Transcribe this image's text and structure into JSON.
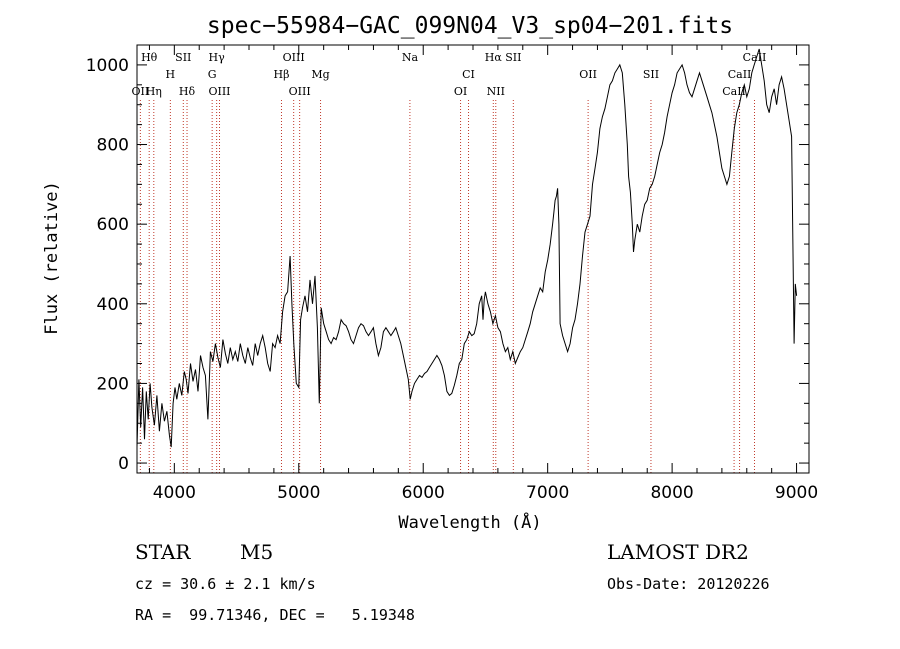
{
  "chart_data": {
    "type": "line",
    "title": "spec−55984−GAC_099N04_V3_sp04−201.fits",
    "xlabel": "Wavelength (Å)",
    "ylabel": "Flux (relative)",
    "xlim": [
      3700,
      9100
    ],
    "ylim": [
      -25,
      1050
    ],
    "x_ticks": [
      4000,
      5000,
      6000,
      7000,
      8000,
      9000
    ],
    "y_ticks": [
      0,
      200,
      400,
      600,
      800,
      1000
    ],
    "grid": false,
    "series": [
      {
        "points": [
          [
            3700,
            40
          ],
          [
            3715,
            210
          ],
          [
            3730,
            90
          ],
          [
            3745,
            190
          ],
          [
            3760,
            60
          ],
          [
            3775,
            180
          ],
          [
            3790,
            110
          ],
          [
            3805,
            200
          ],
          [
            3820,
            140
          ],
          [
            3840,
            95
          ],
          [
            3860,
            170
          ],
          [
            3880,
            80
          ],
          [
            3900,
            150
          ],
          [
            3920,
            105
          ],
          [
            3940,
            130
          ],
          [
            3960,
            70
          ],
          [
            3975,
            40
          ],
          [
            3990,
            150
          ],
          [
            4005,
            190
          ],
          [
            4020,
            160
          ],
          [
            4040,
            200
          ],
          [
            4060,
            170
          ],
          [
            4080,
            230
          ],
          [
            4095,
            210
          ],
          [
            4110,
            175
          ],
          [
            4130,
            250
          ],
          [
            4150,
            205
          ],
          [
            4170,
            235
          ],
          [
            4190,
            180
          ],
          [
            4210,
            270
          ],
          [
            4230,
            240
          ],
          [
            4250,
            220
          ],
          [
            4270,
            110
          ],
          [
            4290,
            280
          ],
          [
            4310,
            255
          ],
          [
            4330,
            300
          ],
          [
            4350,
            265
          ],
          [
            4370,
            240
          ],
          [
            4390,
            310
          ],
          [
            4410,
            275
          ],
          [
            4430,
            250
          ],
          [
            4450,
            290
          ],
          [
            4470,
            260
          ],
          [
            4490,
            280
          ],
          [
            4510,
            255
          ],
          [
            4530,
            300
          ],
          [
            4550,
            270
          ],
          [
            4570,
            250
          ],
          [
            4590,
            290
          ],
          [
            4610,
            265
          ],
          [
            4630,
            245
          ],
          [
            4650,
            300
          ],
          [
            4670,
            270
          ],
          [
            4690,
            300
          ],
          [
            4710,
            320
          ],
          [
            4730,
            290
          ],
          [
            4750,
            250
          ],
          [
            4770,
            230
          ],
          [
            4790,
            300
          ],
          [
            4810,
            290
          ],
          [
            4830,
            320
          ],
          [
            4850,
            300
          ],
          [
            4870,
            380
          ],
          [
            4890,
            420
          ],
          [
            4910,
            430
          ],
          [
            4930,
            520
          ],
          [
            4945,
            400
          ],
          [
            4960,
            300
          ],
          [
            4980,
            200
          ],
          [
            5000,
            190
          ],
          [
            5015,
            360
          ],
          [
            5030,
            390
          ],
          [
            5050,
            420
          ],
          [
            5070,
            380
          ],
          [
            5090,
            460
          ],
          [
            5110,
            400
          ],
          [
            5130,
            470
          ],
          [
            5150,
            340
          ],
          [
            5165,
            150
          ],
          [
            5180,
            390
          ],
          [
            5200,
            350
          ],
          [
            5220,
            330
          ],
          [
            5240,
            310
          ],
          [
            5260,
            300
          ],
          [
            5280,
            315
          ],
          [
            5300,
            310
          ],
          [
            5320,
            330
          ],
          [
            5340,
            360
          ],
          [
            5360,
            350
          ],
          [
            5380,
            345
          ],
          [
            5400,
            330
          ],
          [
            5420,
            310
          ],
          [
            5440,
            300
          ],
          [
            5460,
            320
          ],
          [
            5480,
            340
          ],
          [
            5500,
            350
          ],
          [
            5520,
            345
          ],
          [
            5540,
            330
          ],
          [
            5560,
            320
          ],
          [
            5580,
            330
          ],
          [
            5600,
            340
          ],
          [
            5620,
            300
          ],
          [
            5640,
            270
          ],
          [
            5660,
            290
          ],
          [
            5680,
            330
          ],
          [
            5700,
            340
          ],
          [
            5720,
            330
          ],
          [
            5740,
            320
          ],
          [
            5760,
            330
          ],
          [
            5780,
            340
          ],
          [
            5800,
            320
          ],
          [
            5820,
            300
          ],
          [
            5840,
            270
          ],
          [
            5860,
            240
          ],
          [
            5880,
            210
          ],
          [
            5895,
            160
          ],
          [
            5910,
            180
          ],
          [
            5930,
            200
          ],
          [
            5950,
            210
          ],
          [
            5970,
            220
          ],
          [
            5990,
            215
          ],
          [
            6010,
            225
          ],
          [
            6030,
            230
          ],
          [
            6050,
            240
          ],
          [
            6070,
            250
          ],
          [
            6090,
            260
          ],
          [
            6110,
            270
          ],
          [
            6130,
            260
          ],
          [
            6150,
            245
          ],
          [
            6170,
            220
          ],
          [
            6190,
            180
          ],
          [
            6210,
            170
          ],
          [
            6230,
            175
          ],
          [
            6250,
            195
          ],
          [
            6270,
            220
          ],
          [
            6290,
            250
          ],
          [
            6310,
            260
          ],
          [
            6330,
            300
          ],
          [
            6350,
            310
          ],
          [
            6370,
            330
          ],
          [
            6390,
            320
          ],
          [
            6410,
            325
          ],
          [
            6430,
            350
          ],
          [
            6450,
            400
          ],
          [
            6470,
            420
          ],
          [
            6480,
            360
          ],
          [
            6490,
            410
          ],
          [
            6500,
            430
          ],
          [
            6520,
            400
          ],
          [
            6540,
            380
          ],
          [
            6560,
            350
          ],
          [
            6580,
            370
          ],
          [
            6600,
            340
          ],
          [
            6620,
            330
          ],
          [
            6640,
            300
          ],
          [
            6660,
            280
          ],
          [
            6680,
            290
          ],
          [
            6700,
            260
          ],
          [
            6720,
            280
          ],
          [
            6740,
            250
          ],
          [
            6760,
            265
          ],
          [
            6780,
            280
          ],
          [
            6800,
            290
          ],
          [
            6820,
            310
          ],
          [
            6840,
            330
          ],
          [
            6860,
            350
          ],
          [
            6880,
            380
          ],
          [
            6900,
            400
          ],
          [
            6920,
            420
          ],
          [
            6940,
            440
          ],
          [
            6960,
            430
          ],
          [
            6980,
            480
          ],
          [
            7000,
            510
          ],
          [
            7020,
            550
          ],
          [
            7040,
            600
          ],
          [
            7050,
            630
          ],
          [
            7060,
            660
          ],
          [
            7070,
            670
          ],
          [
            7080,
            690
          ],
          [
            7090,
            600
          ],
          [
            7100,
            350
          ],
          [
            7120,
            320
          ],
          [
            7140,
            300
          ],
          [
            7160,
            280
          ],
          [
            7180,
            300
          ],
          [
            7200,
            340
          ],
          [
            7220,
            360
          ],
          [
            7240,
            400
          ],
          [
            7260,
            450
          ],
          [
            7280,
            520
          ],
          [
            7300,
            580
          ],
          [
            7320,
            600
          ],
          [
            7340,
            620
          ],
          [
            7360,
            700
          ],
          [
            7380,
            740
          ],
          [
            7400,
            780
          ],
          [
            7420,
            840
          ],
          [
            7440,
            870
          ],
          [
            7460,
            890
          ],
          [
            7480,
            920
          ],
          [
            7500,
            950
          ],
          [
            7520,
            960
          ],
          [
            7540,
            980
          ],
          [
            7560,
            990
          ],
          [
            7580,
            1000
          ],
          [
            7600,
            980
          ],
          [
            7620,
            900
          ],
          [
            7640,
            800
          ],
          [
            7650,
            720
          ],
          [
            7665,
            680
          ],
          [
            7680,
            600
          ],
          [
            7690,
            530
          ],
          [
            7700,
            560
          ],
          [
            7720,
            600
          ],
          [
            7740,
            580
          ],
          [
            7760,
            620
          ],
          [
            7780,
            650
          ],
          [
            7800,
            660
          ],
          [
            7820,
            690
          ],
          [
            7840,
            700
          ],
          [
            7860,
            720
          ],
          [
            7880,
            750
          ],
          [
            7900,
            780
          ],
          [
            7920,
            800
          ],
          [
            7940,
            830
          ],
          [
            7960,
            870
          ],
          [
            7980,
            900
          ],
          [
            8000,
            930
          ],
          [
            8020,
            950
          ],
          [
            8040,
            980
          ],
          [
            8060,
            990
          ],
          [
            8080,
            1000
          ],
          [
            8100,
            980
          ],
          [
            8120,
            950
          ],
          [
            8140,
            930
          ],
          [
            8160,
            920
          ],
          [
            8180,
            940
          ],
          [
            8200,
            960
          ],
          [
            8220,
            980
          ],
          [
            8240,
            960
          ],
          [
            8260,
            940
          ],
          [
            8280,
            920
          ],
          [
            8300,
            900
          ],
          [
            8320,
            880
          ],
          [
            8340,
            850
          ],
          [
            8360,
            820
          ],
          [
            8380,
            780
          ],
          [
            8400,
            740
          ],
          [
            8420,
            720
          ],
          [
            8440,
            700
          ],
          [
            8460,
            720
          ],
          [
            8480,
            780
          ],
          [
            8500,
            840
          ],
          [
            8520,
            880
          ],
          [
            8540,
            900
          ],
          [
            8560,
            930
          ],
          [
            8580,
            950
          ],
          [
            8600,
            920
          ],
          [
            8620,
            940
          ],
          [
            8640,
            980
          ],
          [
            8660,
            1000
          ],
          [
            8680,
            1020
          ],
          [
            8700,
            1040
          ],
          [
            8720,
            1000
          ],
          [
            8740,
            960
          ],
          [
            8760,
            900
          ],
          [
            8780,
            880
          ],
          [
            8800,
            920
          ],
          [
            8820,
            940
          ],
          [
            8840,
            900
          ],
          [
            8860,
            950
          ],
          [
            8880,
            970
          ],
          [
            8900,
            940
          ],
          [
            8920,
            900
          ],
          [
            8940,
            860
          ],
          [
            8960,
            820
          ],
          [
            8980,
            300
          ],
          [
            8990,
            450
          ],
          [
            9000,
            420
          ]
        ]
      }
    ],
    "line_markers": [
      {
        "label": "Hθ",
        "wavelength": 3798,
        "row": 0
      },
      {
        "label": "OII",
        "wavelength": 3727,
        "row": 2
      },
      {
        "label": "Hη",
        "wavelength": 3835,
        "row": 2
      },
      {
        "label": "H",
        "wavelength": 3968,
        "row": 1
      },
      {
        "label": "SII",
        "wavelength": 4072,
        "row": 0
      },
      {
        "label": "Hδ",
        "wavelength": 4102,
        "row": 2
      },
      {
        "label": "Hγ",
        "wavelength": 4340,
        "row": 0
      },
      {
        "label": "G",
        "wavelength": 4304,
        "row": 1
      },
      {
        "label": "OIII",
        "wavelength": 4363,
        "row": 2
      },
      {
        "label": "Hβ",
        "wavelength": 4861,
        "row": 1
      },
      {
        "label": "OIII",
        "wavelength": 4959,
        "row": 0
      },
      {
        "label": "OIII",
        "wavelength": 5007,
        "row": 2
      },
      {
        "label": "Mg",
        "wavelength": 5175,
        "row": 1
      },
      {
        "label": "Na",
        "wavelength": 5893,
        "row": 0
      },
      {
        "label": "CI",
        "wavelength": 6364,
        "row": 1
      },
      {
        "label": "OI",
        "wavelength": 6300,
        "row": 2
      },
      {
        "label": "Hα",
        "wavelength": 6563,
        "row": 0
      },
      {
        "label": "SII",
        "wavelength": 6724,
        "row": 0
      },
      {
        "label": "NII",
        "wavelength": 6583,
        "row": 2
      },
      {
        "label": "OII",
        "wavelength": 7325,
        "row": 1
      },
      {
        "label": "SII",
        "wavelength": 7830,
        "row": 1
      },
      {
        "label": "CaII",
        "wavelength": 8662,
        "row": 0
      },
      {
        "label": "CaII",
        "wavelength": 8542,
        "row": 1
      },
      {
        "label": "CaII",
        "wavelength": 8498,
        "row": 2
      }
    ],
    "marker_color": "#c0392b",
    "line_color": "#000000"
  },
  "footer": {
    "object_class": "STAR",
    "subclass": "M5",
    "survey": "LAMOST DR2",
    "cz": "cz = 30.6 ± 2.1 km/s",
    "obs_date": "Obs-Date: 20120226",
    "coords": "RA =  99.71346, DEC =   5.19348"
  }
}
